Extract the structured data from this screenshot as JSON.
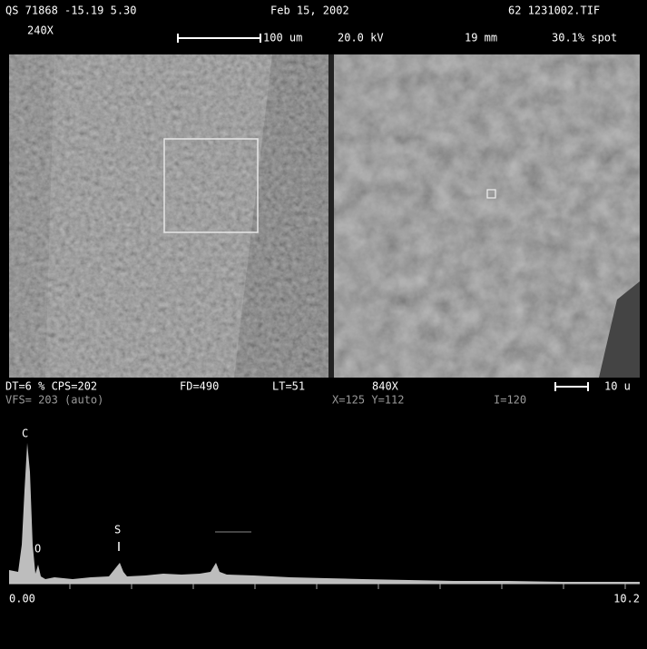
{
  "header": {
    "line1": [
      "QS 71868 -15.19 5.30",
      "Feb 15, 2002",
      "62 1231002.TIF"
    ],
    "line2": [
      "240X",
      "100 um",
      "20.0 kV",
      "19 mm",
      "30.1% spot"
    ]
  },
  "status": {
    "line1": [
      "DT=6 % CPS=202",
      "FD=490",
      "LT=51",
      "840X",
      "10 u"
    ],
    "line2": [
      "VFS= 203 (auto)",
      "X=125 Y=112",
      "I=120"
    ]
  },
  "spectrum": {
    "peaks": [
      "C",
      "O",
      "S"
    ],
    "axis_start": "0.00",
    "axis_end": "10.2"
  }
}
